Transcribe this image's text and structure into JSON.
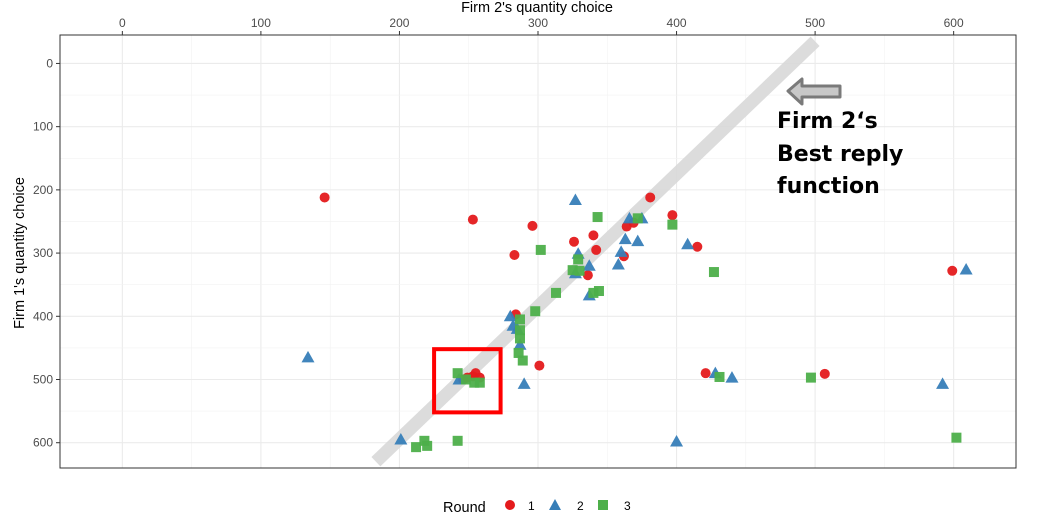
{
  "chart_data": {
    "type": "scatter",
    "title": "",
    "xlabel": "Firm 2's quantity choice",
    "ylabel": "Firm 1's quantity choice",
    "x_axis_position": "top",
    "y_axis_reversed": true,
    "xlim": [
      -45,
      645
    ],
    "ylim": [
      -45,
      640
    ],
    "x_ticks": [
      0,
      100,
      200,
      300,
      400,
      500,
      600
    ],
    "y_ticks": [
      0,
      100,
      200,
      300,
      400,
      500,
      600
    ],
    "x_tick_labels": [
      "0",
      "100",
      "200",
      "300",
      "400",
      "500",
      "600"
    ],
    "y_tick_labels": [
      "0",
      "100",
      "200",
      "300",
      "400",
      "500",
      "600"
    ],
    "grid": true,
    "legend": {
      "title": "Round",
      "position": "bottom",
      "items": [
        {
          "label": "1",
          "shape": "circle",
          "color": "#e41a1c"
        },
        {
          "label": "2",
          "shape": "triangle",
          "color": "#377eb8"
        },
        {
          "label": "3",
          "shape": "square",
          "color": "#4daf4a"
        }
      ]
    },
    "series": [
      {
        "name": "1",
        "shape": "circle",
        "color": "#e41a1c",
        "points": [
          [
            146,
            212
          ],
          [
            253,
            247
          ],
          [
            296,
            257
          ],
          [
            283,
            303
          ],
          [
            326,
            282
          ],
          [
            340,
            272
          ],
          [
            381,
            212
          ],
          [
            342,
            295
          ],
          [
            336,
            335
          ],
          [
            364,
            258
          ],
          [
            369,
            252
          ],
          [
            362,
            305
          ],
          [
            397,
            240
          ],
          [
            415,
            290
          ],
          [
            599,
            328
          ],
          [
            284,
            397
          ],
          [
            301,
            478
          ],
          [
            421,
            490
          ],
          [
            507,
            491
          ],
          [
            255,
            490
          ],
          [
            253,
            495
          ],
          [
            258,
            497
          ],
          [
            249,
            497
          ],
          [
            246,
            500
          ]
        ]
      },
      {
        "name": "2",
        "shape": "triangle",
        "color": "#377eb8",
        "points": [
          [
            327,
            216
          ],
          [
            366,
            245
          ],
          [
            375,
            245
          ],
          [
            329,
            301
          ],
          [
            337,
            320
          ],
          [
            327,
            332
          ],
          [
            363,
            278
          ],
          [
            360,
            298
          ],
          [
            358,
            318
          ],
          [
            372,
            281
          ],
          [
            408,
            286
          ],
          [
            337,
            367
          ],
          [
            609,
            326
          ],
          [
            280,
            400
          ],
          [
            282,
            415
          ],
          [
            285,
            420
          ],
          [
            287,
            445
          ],
          [
            290,
            507
          ],
          [
            134,
            465
          ],
          [
            243,
            500
          ],
          [
            428,
            490
          ],
          [
            440,
            497
          ],
          [
            592,
            507
          ],
          [
            201,
            595
          ],
          [
            400,
            598
          ]
        ]
      },
      {
        "name": "3",
        "shape": "square",
        "color": "#4daf4a",
        "points": [
          [
            343,
            243
          ],
          [
            372,
            245
          ],
          [
            302,
            295
          ],
          [
            397,
            255
          ],
          [
            329,
            310
          ],
          [
            325,
            327
          ],
          [
            330,
            328
          ],
          [
            313,
            363
          ],
          [
            344,
            360
          ],
          [
            340,
            363
          ],
          [
            427,
            330
          ],
          [
            298,
            392
          ],
          [
            287,
            405
          ],
          [
            287,
            422
          ],
          [
            287,
            435
          ],
          [
            286,
            458
          ],
          [
            289,
            470
          ],
          [
            242,
            490
          ],
          [
            248,
            500
          ],
          [
            254,
            505
          ],
          [
            258,
            505
          ],
          [
            431,
            496
          ],
          [
            497,
            497
          ],
          [
            602,
            592
          ],
          [
            242,
            597
          ],
          [
            218,
            597
          ],
          [
            212,
            607
          ],
          [
            220,
            605
          ]
        ]
      }
    ],
    "best_reply_line": {
      "from": [
        183,
        630
      ],
      "to": [
        500,
        -35
      ],
      "color": "#d9d9d9"
    },
    "highlight_box": {
      "x": [
        225,
        273
      ],
      "y": [
        452,
        552
      ],
      "color": "#ff0000"
    },
    "annotation": {
      "lines": [
        "Firm 2‘s",
        "Best reply",
        "function"
      ],
      "arrow_color": "#808080"
    }
  }
}
